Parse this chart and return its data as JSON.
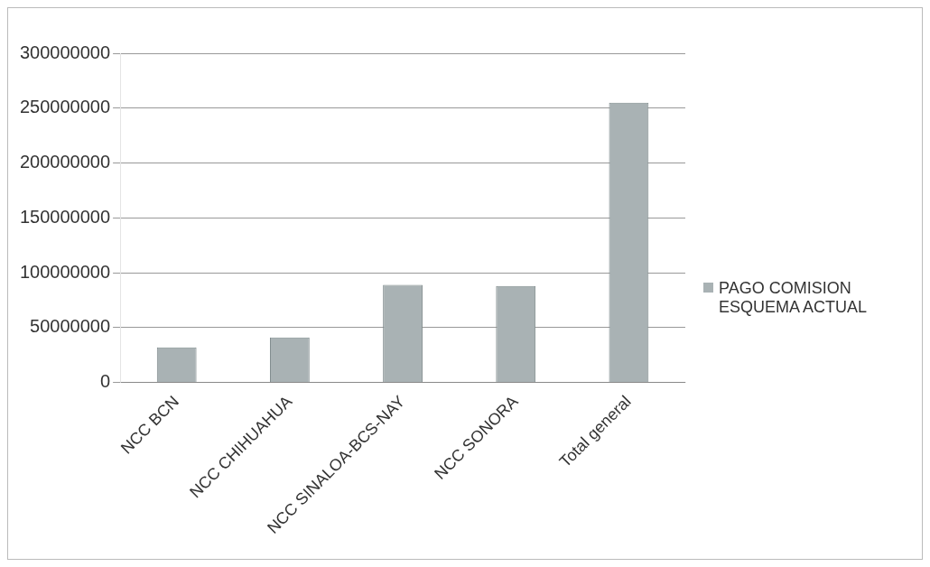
{
  "chart_data": {
    "type": "bar",
    "categories": [
      "NCC BCN",
      "NCC CHIHUAHUA",
      "NCC SINALOA-BCS-NAY",
      "NCC SONORA",
      "Total general"
    ],
    "series": [
      {
        "name": "PAGO COMISION ESQUEMA ACTUAL",
        "color": "#a9b2b4",
        "values": [
          32000000,
          41000000,
          89000000,
          88000000,
          255000000
        ]
      }
    ],
    "ylim": [
      0,
      300000000
    ],
    "yticks": [
      0,
      50000000,
      100000000,
      150000000,
      200000000,
      250000000,
      300000000
    ],
    "grid": "y",
    "legend": "right"
  }
}
